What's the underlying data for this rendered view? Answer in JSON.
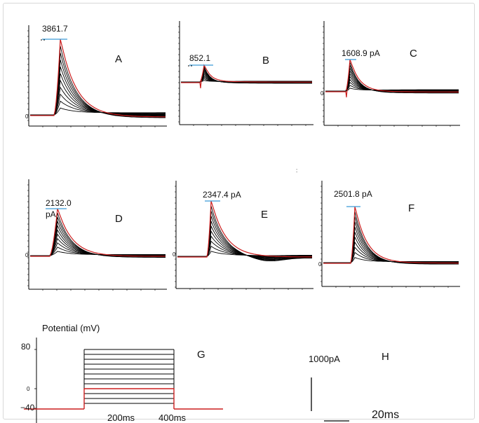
{
  "colors": {
    "trace": "#000000",
    "peak_trace": "#cc1f1f",
    "peak_marker": "#3b9bd8",
    "axis": "#000000"
  },
  "panels": [
    {
      "letter": "A",
      "peak_label": "3861.7",
      "zero_label": "0"
    },
    {
      "letter": "B",
      "peak_label": "852.1",
      "zero_label": ""
    },
    {
      "letter": "C",
      "peak_label": "1608.9 pA",
      "zero_label": "0"
    },
    {
      "letter": "D",
      "peak_label": "2132.0 pA",
      "zero_label": "0"
    },
    {
      "letter": "E",
      "peak_label": "2347.4 pA",
      "zero_label": "0"
    },
    {
      "letter": "F",
      "peak_label": "2501.8 pA",
      "zero_label": "0"
    }
  ],
  "protocol": {
    "letter": "G",
    "ylabel": "Potential (mV)",
    "y_ticks": [
      "80",
      "0",
      "−40"
    ],
    "x_ticks": [
      "200ms",
      "400ms"
    ],
    "holding_mv": -40,
    "step_levels_mv": [
      80,
      70,
      60,
      50,
      40,
      30,
      20,
      10,
      0,
      -10,
      -20,
      -30
    ],
    "highlight_level_mv": 0
  },
  "scale_bar": {
    "letter": "H",
    "current_label": "1000pA",
    "time_label": "20ms"
  },
  "chart_data": [
    {
      "type": "line",
      "panel": "A",
      "peak_current_pA": 3861.7
    },
    {
      "type": "line",
      "panel": "B",
      "peak_current_pA": 852.1
    },
    {
      "type": "line",
      "panel": "C",
      "peak_current_pA": 1608.9
    },
    {
      "type": "line",
      "panel": "D",
      "peak_current_pA": 2132.0
    },
    {
      "type": "line",
      "panel": "E",
      "peak_current_pA": 2347.4
    },
    {
      "type": "line",
      "panel": "F",
      "peak_current_pA": 2501.8
    },
    {
      "type": "line",
      "panel": "G",
      "ylabel": "Potential (mV)",
      "ylim": [
        -40,
        80
      ],
      "x_ticks": [
        "200ms",
        "400ms"
      ],
      "holding_mv": -40,
      "step_levels_mv": [
        80,
        70,
        60,
        50,
        40,
        30,
        20,
        10,
        0,
        -10,
        -20,
        -30
      ]
    }
  ]
}
